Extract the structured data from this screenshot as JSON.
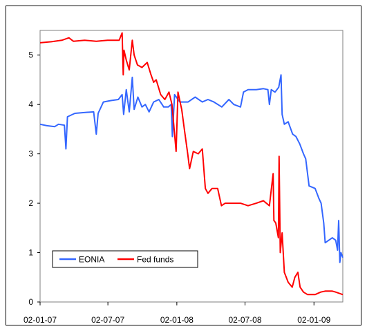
{
  "chart_data": {
    "type": "line",
    "title": "",
    "xlabel": "",
    "ylabel": "",
    "ylim": [
      0,
      5.5
    ],
    "xlim": [
      "2007-01-02",
      "2009-03-20"
    ],
    "yticks": [
      "0",
      "1",
      "2",
      "3",
      "4",
      "5"
    ],
    "xticks": [
      {
        "date": "2007-01-02",
        "label": "02-01-07"
      },
      {
        "date": "2007-07-02",
        "label": "02-07-07"
      },
      {
        "date": "2008-01-02",
        "label": "02-01-08"
      },
      {
        "date": "2008-07-02",
        "label": "02-07-08"
      },
      {
        "date": "2009-01-02",
        "label": "02-01-09"
      }
    ],
    "grid": false,
    "legend_position": "bottom-left",
    "series": [
      {
        "name": "EONIA",
        "color": "#3366ff",
        "points": [
          [
            "2007-01-02",
            3.6
          ],
          [
            "2007-01-20",
            3.57
          ],
          [
            "2007-02-10",
            3.55
          ],
          [
            "2007-02-20",
            3.6
          ],
          [
            "2007-03-08",
            3.58
          ],
          [
            "2007-03-12",
            3.1
          ],
          [
            "2007-03-16",
            3.75
          ],
          [
            "2007-04-05",
            3.82
          ],
          [
            "2007-05-05",
            3.84
          ],
          [
            "2007-05-25",
            3.85
          ],
          [
            "2007-06-01",
            3.4
          ],
          [
            "2007-06-06",
            3.82
          ],
          [
            "2007-06-20",
            4.05
          ],
          [
            "2007-07-10",
            4.08
          ],
          [
            "2007-07-30",
            4.1
          ],
          [
            "2007-08-09",
            4.2
          ],
          [
            "2007-08-13",
            3.8
          ],
          [
            "2007-08-20",
            4.3
          ],
          [
            "2007-08-28",
            3.85
          ],
          [
            "2007-09-05",
            4.55
          ],
          [
            "2007-09-10",
            3.9
          ],
          [
            "2007-09-20",
            4.15
          ],
          [
            "2007-10-01",
            3.95
          ],
          [
            "2007-10-10",
            4.0
          ],
          [
            "2007-10-20",
            3.85
          ],
          [
            "2007-11-01",
            4.05
          ],
          [
            "2007-11-15",
            4.1
          ],
          [
            "2007-11-28",
            3.95
          ],
          [
            "2007-12-10",
            3.95
          ],
          [
            "2007-12-18",
            4.0
          ],
          [
            "2007-12-21",
            3.35
          ],
          [
            "2007-12-27",
            4.2
          ],
          [
            "2008-01-10",
            4.05
          ],
          [
            "2008-02-01",
            4.05
          ],
          [
            "2008-02-20",
            4.15
          ],
          [
            "2008-03-10",
            4.05
          ],
          [
            "2008-03-25",
            4.1
          ],
          [
            "2008-04-10",
            4.05
          ],
          [
            "2008-05-01",
            3.95
          ],
          [
            "2008-05-20",
            4.1
          ],
          [
            "2008-06-02",
            4.0
          ],
          [
            "2008-06-20",
            3.95
          ],
          [
            "2008-06-28",
            4.25
          ],
          [
            "2008-07-10",
            4.3
          ],
          [
            "2008-08-01",
            4.3
          ],
          [
            "2008-08-20",
            4.32
          ],
          [
            "2008-09-01",
            4.3
          ],
          [
            "2008-09-05",
            4.0
          ],
          [
            "2008-09-10",
            4.3
          ],
          [
            "2008-09-20",
            4.25
          ],
          [
            "2008-09-30",
            4.35
          ],
          [
            "2008-10-06",
            4.6
          ],
          [
            "2008-10-09",
            3.8
          ],
          [
            "2008-10-15",
            3.6
          ],
          [
            "2008-10-25",
            3.65
          ],
          [
            "2008-11-06",
            3.4
          ],
          [
            "2008-11-15",
            3.35
          ],
          [
            "2008-11-25",
            3.2
          ],
          [
            "2008-12-05",
            3.0
          ],
          [
            "2008-12-11",
            2.9
          ],
          [
            "2008-12-20",
            2.35
          ],
          [
            "2009-01-05",
            2.3
          ],
          [
            "2009-01-15",
            2.1
          ],
          [
            "2009-01-21",
            2.0
          ],
          [
            "2009-01-28",
            1.6
          ],
          [
            "2009-02-01",
            1.2
          ],
          [
            "2009-02-20",
            1.3
          ],
          [
            "2009-03-01",
            1.25
          ],
          [
            "2009-03-06",
            1.05
          ],
          [
            "2009-03-09",
            1.65
          ],
          [
            "2009-03-12",
            0.8
          ],
          [
            "2009-03-15",
            1.0
          ],
          [
            "2009-03-20",
            0.9
          ]
        ]
      },
      {
        "name": "Fed funds",
        "color": "#ff0000",
        "points": [
          [
            "2007-01-02",
            5.25
          ],
          [
            "2007-02-01",
            5.27
          ],
          [
            "2007-03-01",
            5.3
          ],
          [
            "2007-03-20",
            5.35
          ],
          [
            "2007-04-01",
            5.28
          ],
          [
            "2007-05-01",
            5.3
          ],
          [
            "2007-06-01",
            5.28
          ],
          [
            "2007-07-01",
            5.3
          ],
          [
            "2007-08-01",
            5.3
          ],
          [
            "2007-08-09",
            5.45
          ],
          [
            "2007-08-12",
            4.6
          ],
          [
            "2007-08-14",
            5.1
          ],
          [
            "2007-08-20",
            4.9
          ],
          [
            "2007-08-28",
            4.7
          ],
          [
            "2007-09-05",
            5.3
          ],
          [
            "2007-09-10",
            5.0
          ],
          [
            "2007-09-19",
            4.8
          ],
          [
            "2007-10-01",
            4.75
          ],
          [
            "2007-10-15",
            4.85
          ],
          [
            "2007-10-25",
            4.6
          ],
          [
            "2007-11-01",
            4.45
          ],
          [
            "2007-11-08",
            4.5
          ],
          [
            "2007-11-20",
            4.2
          ],
          [
            "2007-12-01",
            4.1
          ],
          [
            "2007-12-12",
            4.25
          ],
          [
            "2007-12-20",
            4.0
          ],
          [
            "2007-12-31",
            3.05
          ],
          [
            "2008-01-05",
            4.25
          ],
          [
            "2008-01-15",
            3.9
          ],
          [
            "2008-01-22",
            3.5
          ],
          [
            "2008-01-31",
            3.0
          ],
          [
            "2008-02-05",
            2.7
          ],
          [
            "2008-02-15",
            3.05
          ],
          [
            "2008-02-28",
            3.0
          ],
          [
            "2008-03-10",
            3.1
          ],
          [
            "2008-03-18",
            2.3
          ],
          [
            "2008-03-25",
            2.2
          ],
          [
            "2008-04-05",
            2.3
          ],
          [
            "2008-04-20",
            2.3
          ],
          [
            "2008-04-30",
            1.95
          ],
          [
            "2008-05-10",
            2.0
          ],
          [
            "2008-06-01",
            2.0
          ],
          [
            "2008-06-20",
            2.0
          ],
          [
            "2008-07-10",
            1.95
          ],
          [
            "2008-08-01",
            2.0
          ],
          [
            "2008-08-20",
            2.05
          ],
          [
            "2008-09-05",
            1.95
          ],
          [
            "2008-09-15",
            2.6
          ],
          [
            "2008-09-17",
            1.65
          ],
          [
            "2008-09-22",
            1.6
          ],
          [
            "2008-09-29",
            1.3
          ],
          [
            "2008-10-01",
            2.95
          ],
          [
            "2008-10-04",
            1.0
          ],
          [
            "2008-10-09",
            1.4
          ],
          [
            "2008-10-15",
            0.6
          ],
          [
            "2008-10-25",
            0.4
          ],
          [
            "2008-11-05",
            0.3
          ],
          [
            "2008-11-12",
            0.5
          ],
          [
            "2008-11-20",
            0.6
          ],
          [
            "2008-11-26",
            0.3
          ],
          [
            "2008-12-05",
            0.2
          ],
          [
            "2008-12-16",
            0.15
          ],
          [
            "2008-12-20",
            0.15
          ],
          [
            "2009-01-05",
            0.15
          ],
          [
            "2009-01-20",
            0.2
          ],
          [
            "2009-02-01",
            0.22
          ],
          [
            "2009-02-20",
            0.22
          ],
          [
            "2009-03-01",
            0.2
          ],
          [
            "2009-03-20",
            0.15
          ]
        ]
      }
    ]
  }
}
